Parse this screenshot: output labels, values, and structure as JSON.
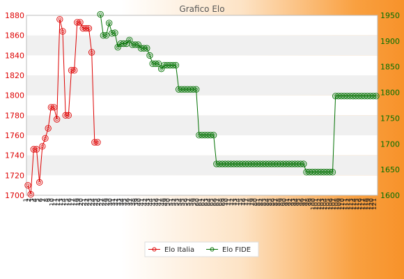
{
  "chart_data": {
    "type": "line",
    "title": "Grafico Elo",
    "x_tick_labels_note": "",
    "xlabel": "",
    "ylabel_left": "",
    "ylabel_right": "",
    "ylim_left": [
      1700,
      1880
    ],
    "ylim_right": [
      1600,
      1950
    ],
    "yticks_left": [
      1700,
      1720,
      1740,
      1760,
      1780,
      1800,
      1820,
      1840,
      1860,
      1880
    ],
    "yticks_right": [
      1600,
      1650,
      1700,
      1750,
      1800,
      1850,
      1900,
      1950
    ],
    "grid": "horizontal bands",
    "legend_position": "bottom-center",
    "series": [
      {
        "name": "Elo Italia",
        "axis": "left",
        "color": "#dd0000",
        "values": [
          1710,
          1701,
          1746,
          1746,
          1713,
          1749,
          1757,
          1767,
          1788,
          1788,
          1776,
          1876,
          1864,
          1780,
          1780,
          1825,
          1825,
          1873,
          1873,
          1867,
          1867,
          1867,
          1843,
          1753,
          1753
        ]
      },
      {
        "name": "Elo FIDE",
        "axis": "right",
        "color": "#007000",
        "start_index": 25,
        "values": [
          1952,
          1911,
          1911,
          1935,
          1915,
          1916,
          1888,
          1895,
          1895,
          1895,
          1902,
          1893,
          1893,
          1893,
          1886,
          1886,
          1886,
          1872,
          1856,
          1856,
          1856,
          1846,
          1853,
          1853,
          1853,
          1853,
          1853,
          1806,
          1806,
          1806,
          1806,
          1806,
          1806,
          1806,
          1717,
          1717,
          1717,
          1717,
          1717,
          1717,
          1661,
          1661,
          1661,
          1661,
          1661,
          1661,
          1661,
          1661,
          1661,
          1661,
          1661,
          1661,
          1661,
          1661,
          1661,
          1661,
          1661,
          1661,
          1661,
          1661,
          1661,
          1661,
          1661,
          1661,
          1661,
          1661,
          1661,
          1661,
          1661,
          1661,
          1661,
          1645,
          1645,
          1645,
          1645,
          1645,
          1645,
          1645,
          1645,
          1645,
          1645,
          1793,
          1793,
          1793,
          1793,
          1793,
          1793,
          1793,
          1793,
          1793,
          1793,
          1793,
          1793,
          1793,
          1793,
          1793
        ]
      }
    ]
  }
}
